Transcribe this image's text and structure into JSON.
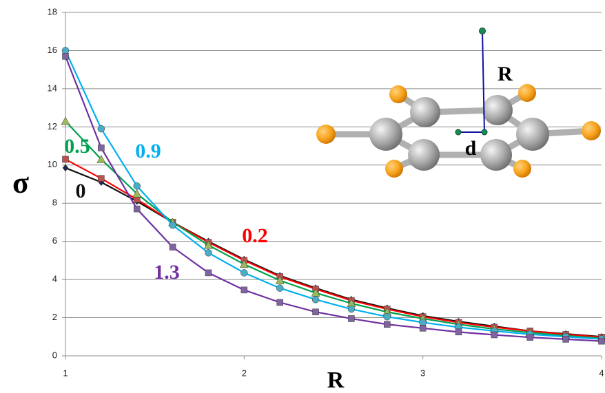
{
  "chart_data": {
    "type": "line",
    "x_label": "R",
    "y_label": "σ",
    "x": [
      1.0,
      1.2,
      1.4,
      1.6,
      1.8,
      2.0,
      2.2,
      2.4,
      2.6,
      2.8,
      3.0,
      3.2,
      3.4,
      3.6,
      3.8,
      4.0
    ],
    "xlim": [
      1,
      4
    ],
    "xticks": [
      1,
      2,
      3,
      4
    ],
    "ylim": [
      0,
      18
    ],
    "yticks": [
      0,
      2,
      4,
      6,
      8,
      10,
      12,
      14,
      16,
      18
    ],
    "grid": true,
    "series": [
      {
        "name": "0",
        "color": "#111111",
        "marker_color": "#1f2a4a",
        "marker": "diamond",
        "values": [
          9.85,
          9.1,
          8.1,
          7.0,
          6.0,
          5.05,
          4.2,
          3.55,
          2.95,
          2.5,
          2.1,
          1.8,
          1.55,
          1.3,
          1.15,
          1.0
        ]
      },
      {
        "name": "0.2",
        "color": "#ff0000",
        "marker_color": "#c0504d",
        "marker": "square",
        "values": [
          10.3,
          9.3,
          8.2,
          7.0,
          5.95,
          5.0,
          4.15,
          3.5,
          2.9,
          2.45,
          2.05,
          1.75,
          1.5,
          1.3,
          1.12,
          0.98
        ]
      },
      {
        "name": "0.5",
        "color": "#00a050",
        "marker_color": "#9bbb59",
        "marker": "triangle",
        "values": [
          12.3,
          10.3,
          8.5,
          7.0,
          5.8,
          4.8,
          3.95,
          3.3,
          2.75,
          2.3,
          1.95,
          1.65,
          1.4,
          1.22,
          1.05,
          0.92
        ]
      },
      {
        "name": "0.9",
        "color": "#00b0f0",
        "marker_color": "#4bacc6",
        "marker": "circle",
        "values": [
          16.0,
          11.9,
          8.9,
          6.85,
          5.4,
          4.35,
          3.55,
          2.95,
          2.45,
          2.05,
          1.75,
          1.5,
          1.3,
          1.13,
          1.0,
          0.88
        ]
      },
      {
        "name": "1.3",
        "color": "#7030a0",
        "marker_color": "#8064a2",
        "marker": "square",
        "values": [
          15.7,
          10.9,
          7.7,
          5.7,
          4.35,
          3.45,
          2.8,
          2.3,
          1.95,
          1.65,
          1.45,
          1.25,
          1.1,
          0.97,
          0.87,
          0.77
        ]
      }
    ],
    "inset_labels": [
      "R",
      "d"
    ]
  }
}
